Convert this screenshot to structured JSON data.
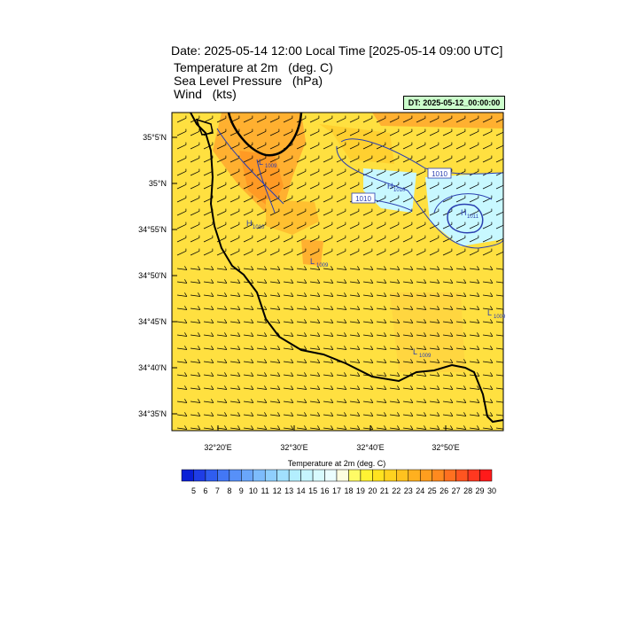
{
  "title": "Date: 2025-05-14  12:00 Local Time [2025-05-14  09:00 UTC]",
  "fields": [
    {
      "name": "Temperature at 2m",
      "unit": "(deg. C)"
    },
    {
      "name": "Sea Level Pressure",
      "unit": "(hPa)"
    },
    {
      "name": "Wind",
      "unit": "(kts)"
    }
  ],
  "dt_label": "DT: 2025-05-12_00:00:00",
  "lat_ticks": [
    "35°5'N",
    "35°N",
    "34°55'N",
    "34°50'N",
    "34°45'N",
    "34°40'N",
    "34°35'N"
  ],
  "lon_ticks": [
    "32°20'E",
    "32°30'E",
    "32°40'E",
    "32°50'E"
  ],
  "pressure_labels": [
    {
      "text": "1010"
    },
    {
      "text": "1010"
    }
  ],
  "pressure_centers": [
    {
      "type": "L",
      "value": "1009"
    },
    {
      "type": "H",
      "value": "1010"
    },
    {
      "type": "H",
      "value": "1010"
    },
    {
      "type": "H",
      "value": "1011"
    },
    {
      "type": "L",
      "value": "1009"
    },
    {
      "type": "L",
      "value": "1009"
    },
    {
      "type": "L",
      "value": "1009"
    }
  ],
  "colorbar": {
    "title": "Temperature at 2m  (deg. C)",
    "labels": [
      "5",
      "6",
      "7",
      "8",
      "9",
      "10",
      "11",
      "12",
      "13",
      "14",
      "15",
      "16",
      "17",
      "18",
      "19",
      "20",
      "21",
      "22",
      "23",
      "24",
      "25",
      "26",
      "27",
      "28",
      "29",
      "30"
    ],
    "colors": [
      "#0a1fd6",
      "#1f3de6",
      "#2f5df0",
      "#4377f5",
      "#5790f8",
      "#6aa6fa",
      "#7dbcfc",
      "#8fcffd",
      "#a1e0fe",
      "#b3eefe",
      "#c6f5fe",
      "#d8fafe",
      "#ebfdff",
      "#fdfde0",
      "#fffb66",
      "#fff233",
      "#ffe21f",
      "#ffd21f",
      "#ffc21f",
      "#ffb01f",
      "#ff9e1f",
      "#ff8a1f",
      "#ff7020",
      "#ff5520",
      "#ff3820",
      "#ff1a1a"
    ]
  },
  "colors": {
    "land_fill": "#ffe040",
    "warm_patch": "#ffb030",
    "hot_patch": "#ff9020",
    "cool_patch": "#c8f8ff",
    "isobar": "#2a3fb0",
    "coast": "#000000"
  }
}
